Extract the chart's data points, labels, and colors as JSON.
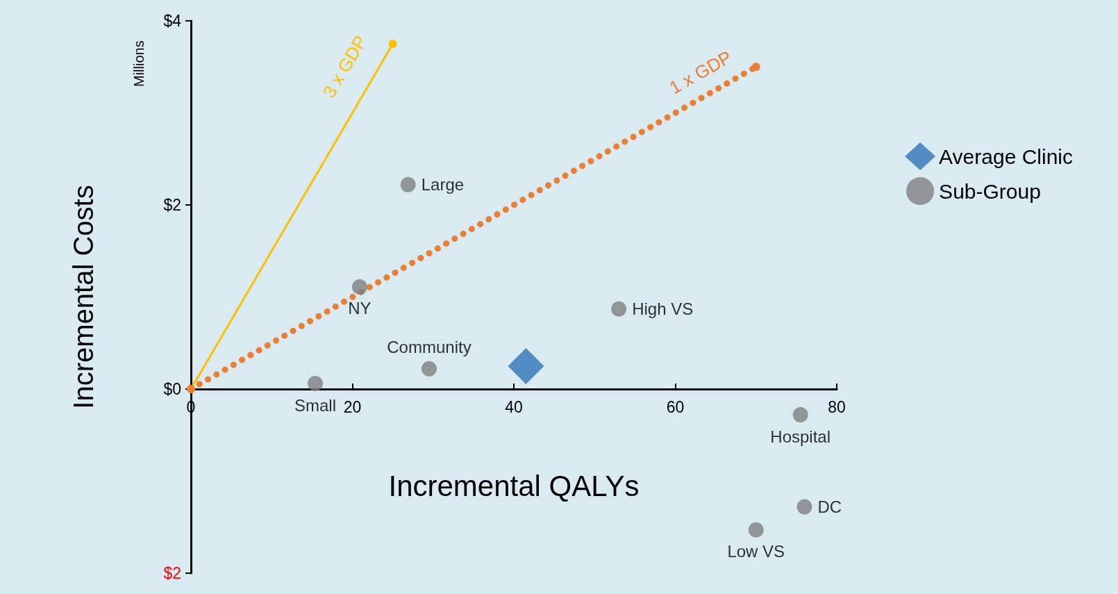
{
  "chart_data": {
    "type": "scatter",
    "xlabel": "Incremental QALYs",
    "ylabel": "Incremental Costs",
    "annotations": [
      "Millions"
    ],
    "xlim": [
      0,
      80
    ],
    "xticks": [
      0,
      20,
      40,
      60,
      80
    ],
    "ylim": [
      -2,
      4
    ],
    "yticks": [
      {
        "value": -2,
        "label": "$2"
      },
      {
        "value": 0,
        "label": "$0"
      },
      {
        "value": 2,
        "label": "$2"
      },
      {
        "value": 4,
        "label": "$4"
      }
    ],
    "grid": false,
    "legend": "right",
    "series": [
      {
        "name": "3 x GDP",
        "type": "line",
        "color": "#ffc000",
        "line_style": "solid",
        "marker": "circle",
        "x": [
          0,
          25.0
        ],
        "values": [
          0,
          3.75
        ]
      },
      {
        "name": "1 x GDP",
        "type": "line",
        "color": "#ed7d31",
        "line_style": "dotted",
        "marker": "circle",
        "x": [
          0,
          70.0
        ],
        "values": [
          0,
          3.5
        ]
      },
      {
        "name": "Average Clinic",
        "color": "#2e75b6",
        "marker": "diamond",
        "x": [
          41.5
        ],
        "values": [
          0.25
        ]
      },
      {
        "name": "Sub-Group",
        "color": "#808080",
        "marker": "circle",
        "x": [
          26.9,
          20.9,
          53.0,
          29.5,
          15.4,
          75.5,
          76.0,
          70.0
        ],
        "values": [
          2.22,
          1.11,
          0.87,
          0.22,
          0.06,
          -0.28,
          -1.28,
          -1.53
        ],
        "value_labels": [
          "Large",
          "NY",
          "High VS",
          "Community",
          "Small",
          "Hospital",
          "DC",
          "Low VS"
        ]
      }
    ]
  }
}
